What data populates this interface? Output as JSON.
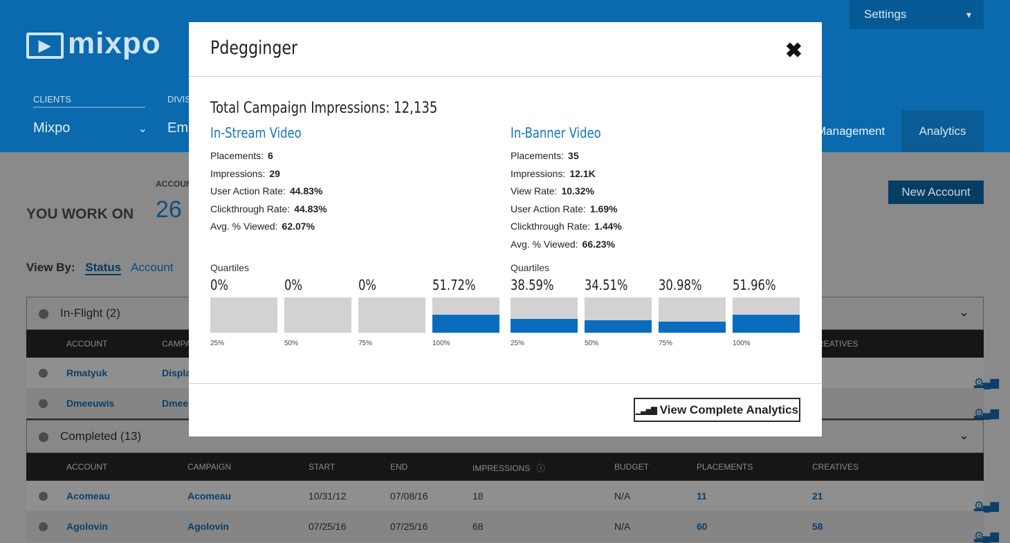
{
  "app": {
    "logo": "mixpo",
    "settings_label": "Settings",
    "clients_label": "CLIENTS",
    "client_value": "Mixpo",
    "division_label": "DIVIS",
    "division_value": "Empl",
    "tab_management": "Management",
    "tab_analytics": "Analytics"
  },
  "summary": {
    "account_label": "ACCOUN",
    "you_work_on": "YOU WORK ON",
    "count": "26",
    "new_account": "New Account"
  },
  "view_by": {
    "label": "View By:",
    "status": "Status",
    "account": "Account"
  },
  "in_flight": {
    "title": "In-Flight (2)",
    "headers": {
      "account": "ACCOUNT",
      "campaign": "CAMPA",
      "creatives": "REATIVES"
    },
    "rows": [
      {
        "account": "Rmatyuk",
        "campaign": "Displa"
      },
      {
        "account": "Dmeeuwis",
        "campaign": "Dmee"
      }
    ]
  },
  "completed": {
    "title": "Completed (13)",
    "headers": {
      "account": "ACCOUNT",
      "campaign": "CAMPAIGN",
      "start": "START",
      "end": "END",
      "impressions": "IMPRESSIONS",
      "budget": "BUDGET",
      "placements": "PLACEMENTS",
      "creatives": "CREATIVES"
    },
    "rows": [
      {
        "account": "Acomeau",
        "campaign": "Acomeau",
        "start": "10/31/12",
        "end": "07/08/16",
        "impressions": "18",
        "budget": "N/A",
        "placements": "11",
        "creatives": "21"
      },
      {
        "account": "Agolovin",
        "campaign": "Agolovin",
        "start": "07/25/16",
        "end": "07/25/16",
        "impressions": "68",
        "budget": "N/A",
        "placements": "60",
        "creatives": "58"
      }
    ]
  },
  "modal": {
    "title": "Pdegginger",
    "total": "Total Campaign Impressions: 12,135",
    "quartiles_label": "Quartiles",
    "view_analytics": "View Complete Analytics",
    "instream": {
      "heading": "In-Stream Video",
      "stats": [
        {
          "label": "Placements:",
          "value": "6"
        },
        {
          "label": "Impressions:",
          "value": "29"
        },
        {
          "label": "User Action Rate:",
          "value": "44.83%"
        },
        {
          "label": "Clickthrough Rate:",
          "value": "44.83%"
        },
        {
          "label": "Avg. % Viewed:",
          "value": "62.07%"
        }
      ],
      "quartiles": [
        {
          "pct": "0%",
          "tick": "25%",
          "value": 0
        },
        {
          "pct": "0%",
          "tick": "50%",
          "value": 0
        },
        {
          "pct": "0%",
          "tick": "75%",
          "value": 0
        },
        {
          "pct": "51.72%",
          "tick": "100%",
          "value": 51.72
        }
      ]
    },
    "inbanner": {
      "heading": "In-Banner Video",
      "stats": [
        {
          "label": "Placements:",
          "value": "35"
        },
        {
          "label": "Impressions:",
          "value": "12.1K"
        },
        {
          "label": "View Rate:",
          "value": "10.32%"
        },
        {
          "label": "User Action Rate:",
          "value": "1.69%"
        },
        {
          "label": "Clickthrough Rate:",
          "value": "1.44%"
        },
        {
          "label": "Avg. % Viewed:",
          "value": "66.23%"
        }
      ],
      "quartiles": [
        {
          "pct": "38.59%",
          "tick": "25%",
          "value": 38.59
        },
        {
          "pct": "34.51%",
          "tick": "50%",
          "value": 34.51
        },
        {
          "pct": "30.98%",
          "tick": "75%",
          "value": 30.98
        },
        {
          "pct": "51.96%",
          "tick": "100%",
          "value": 51.96
        }
      ]
    }
  }
}
